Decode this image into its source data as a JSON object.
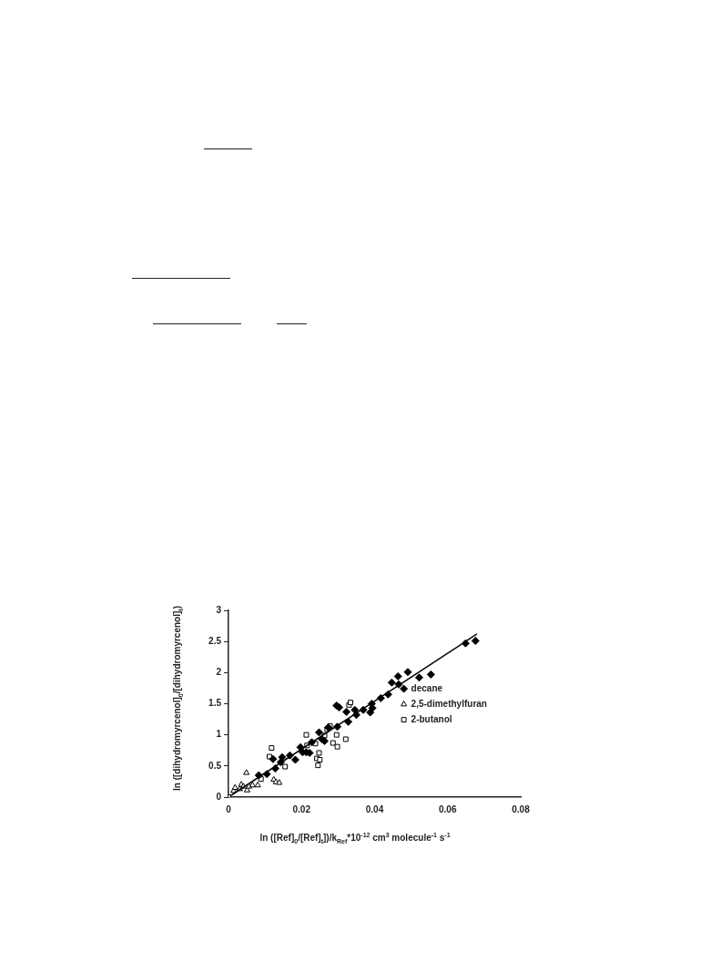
{
  "chart_data": {
    "type": "scatter",
    "xlabel": "ln ([Ref]$_{0}$/[Ref]$_{t}$])/k$_{Ref}$*10$^{-12}$ cm$^{3}$ molecule$^{-1}$ s$^{-1}$",
    "ylabel": "ln ([dihydromyrcenol]$_{0}$/[dihydromyrcenol]$_{t}$)",
    "xlim": [
      0,
      0.08
    ],
    "xticks": [
      0,
      0.02,
      0.04,
      0.06,
      0.08
    ],
    "ylim": [
      0,
      3
    ],
    "yticks": [
      0,
      0.5,
      1,
      1.5,
      2,
      2.5,
      3
    ],
    "grid": false,
    "legend": "right",
    "series": [
      {
        "name": "decane",
        "color": "#000000",
        "marker": "diamond",
        "x": [
          0.0083,
          0.0105,
          0.0122,
          0.0128,
          0.0143,
          0.0147,
          0.0168,
          0.0183,
          0.0197,
          0.0203,
          0.0213,
          0.0222,
          0.0228,
          0.0248,
          0.0256,
          0.0263,
          0.0273,
          0.0296,
          0.0303,
          0.0298,
          0.0323,
          0.0328,
          0.0346,
          0.035,
          0.0369,
          0.0388,
          0.0392,
          0.0394,
          0.0417,
          0.0437,
          0.0447,
          0.0464,
          0.0466,
          0.0491,
          0.0522,
          0.0554,
          0.0649,
          0.0676
        ],
        "values": [
          0.35,
          0.37,
          0.61,
          0.46,
          0.56,
          0.64,
          0.67,
          0.6,
          0.8,
          0.72,
          0.72,
          0.71,
          0.88,
          1.04,
          0.93,
          0.9,
          1.12,
          1.47,
          1.44,
          1.13,
          1.37,
          1.21,
          1.4,
          1.32,
          1.4,
          1.36,
          1.5,
          1.43,
          1.59,
          1.65,
          1.84,
          1.94,
          1.81,
          2.01,
          1.92,
          1.97,
          2.47,
          2.51
        ]
      },
      {
        "name": "2,5-dimethylfuran",
        "color": "#000000",
        "marker": "triangle",
        "x": [
          0.0014,
          0.0018,
          0.0031,
          0.0035,
          0.0041,
          0.0049,
          0.0051,
          0.0056,
          0.0066,
          0.008,
          0.0124,
          0.013,
          0.0139
        ],
        "values": [
          0.1,
          0.15,
          0.13,
          0.2,
          0.17,
          0.39,
          0.11,
          0.17,
          0.19,
          0.19,
          0.28,
          0.24,
          0.23
        ]
      },
      {
        "name": "2-butanol",
        "color": "#000000",
        "marker": "square",
        "x": [
          0,
          0.0089,
          0.0112,
          0.0118,
          0.0155,
          0.0213,
          0.0215,
          0.0238,
          0.0242,
          0.0245,
          0.0248,
          0.025,
          0.0263,
          0.027,
          0.0278,
          0.0286,
          0.0296,
          0.0298,
          0.0321,
          0.033,
          0.0334
        ],
        "values": [
          0,
          0.29,
          0.65,
          0.79,
          0.49,
          1,
          0.83,
          0.86,
          0.62,
          0.51,
          0.71,
          0.6,
          0.99,
          1.09,
          1.14,
          0.87,
          1,
          0.81,
          0.93,
          1.48,
          1.52
        ]
      },
      {
        "type": "line",
        "color": "#000000",
        "marker": "none",
        "line_style": "solid",
        "x": [
          0.0005,
          0.068
        ],
        "values": [
          0.02,
          2.62
        ]
      }
    ]
  }
}
